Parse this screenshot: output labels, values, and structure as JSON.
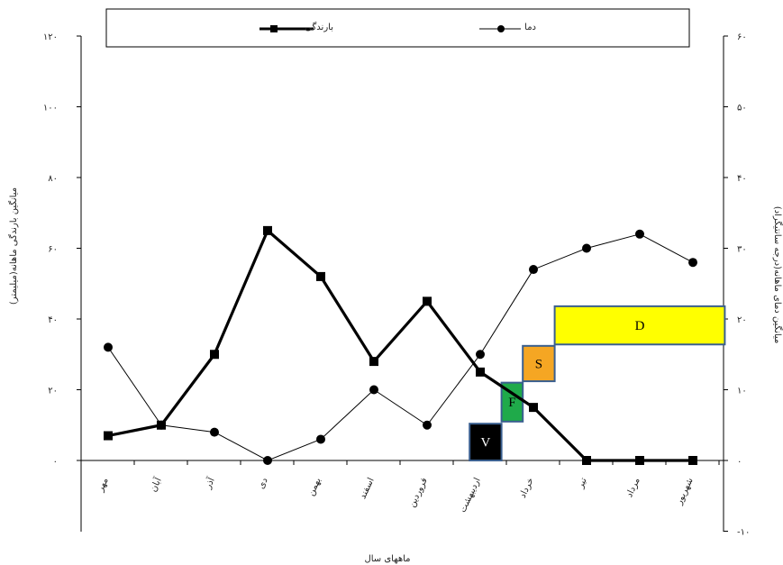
{
  "chart_data": {
    "type": "line",
    "title": "",
    "xlabel": "ماههای سال",
    "ylabel_left": "میانگین بارندگی ماهانه(میلیمتر)",
    "ylabel_right": "میانگین دمای ماهانه(درجه سانتیگراد)",
    "categories": [
      "مهر",
      "آبان",
      "آذر",
      "دی",
      "بهمن",
      "اسفند",
      "فروردین",
      "اردیبهشت",
      "خرداد",
      "تیر",
      "مرداد",
      "شهریور"
    ],
    "left_axis": {
      "ylim": [
        0,
        120
      ],
      "ticks": [
        "۰",
        "۲۰",
        "۴۰",
        "۶۰",
        "۸۰",
        "۱۰۰",
        "۱۲۰"
      ]
    },
    "right_axis": {
      "ylim": [
        -10,
        60
      ],
      "ticks": [
        "-۱۰",
        "۰",
        "۱۰",
        "۲۰",
        "۳۰",
        "۴۰",
        "۵۰",
        "۶۰"
      ]
    },
    "series": [
      {
        "name": "بارندگی",
        "axis": "left",
        "marker": "square",
        "color": "#000000",
        "values": [
          7,
          10,
          30,
          65,
          52,
          28,
          45,
          25,
          15,
          0,
          0,
          0
        ]
      },
      {
        "name": "دما",
        "axis": "right",
        "marker": "circle",
        "color": "#000000",
        "values": [
          16,
          5,
          4,
          0,
          3,
          10,
          5,
          15,
          27,
          30,
          32,
          28
        ]
      }
    ],
    "phases": [
      {
        "label": "V",
        "color": "#000000",
        "text_color": "#ffffff",
        "start": 6.8,
        "end": 7.4,
        "y_from": 0,
        "y_to": 5.2
      },
      {
        "label": "F",
        "color": "#1faa4a",
        "text_color": "#000000",
        "start": 7.4,
        "end": 7.8,
        "y_from": 5.5,
        "y_to": 11
      },
      {
        "label": "S",
        "color": "#f5a623",
        "text_color": "#000000",
        "start": 7.8,
        "end": 8.4,
        "y_from": 11.2,
        "y_to": 16.2
      },
      {
        "label": "D",
        "color": "#ffff00",
        "text_color": "#000000",
        "start": 8.4,
        "end": 11.6,
        "y_from": 16.4,
        "y_to": 21.8
      }
    ],
    "legend": {
      "position": "top",
      "items": [
        "بارندگی",
        "دما"
      ]
    },
    "grid": false
  }
}
